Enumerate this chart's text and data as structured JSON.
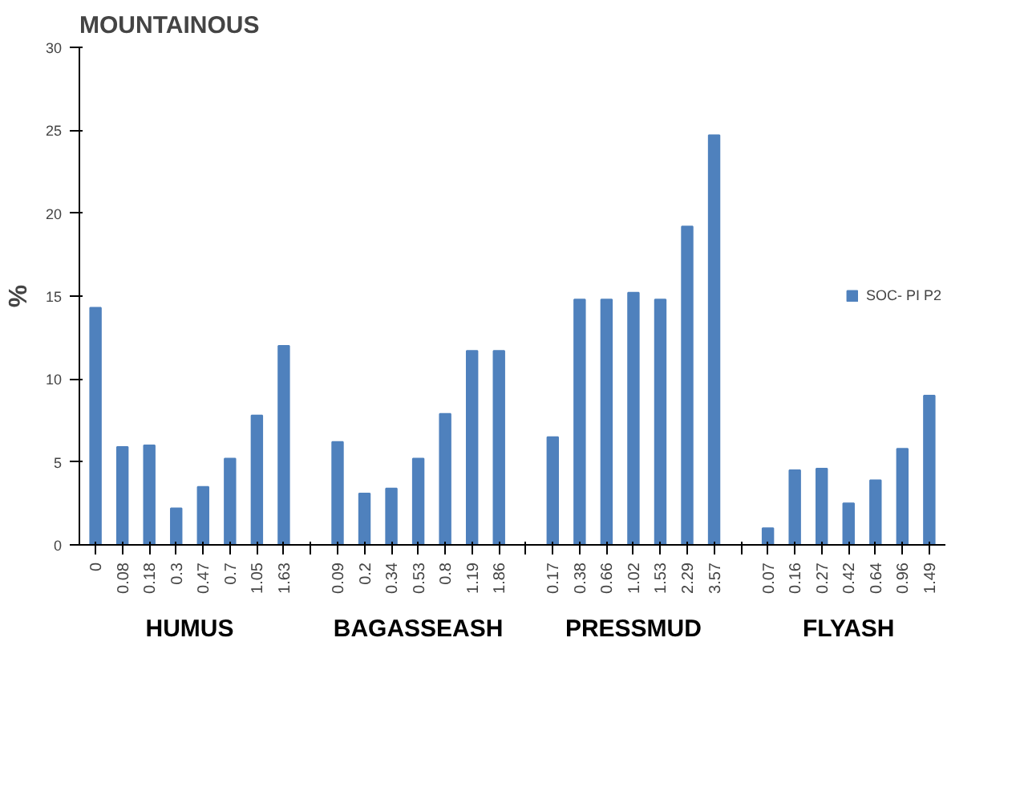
{
  "chart_data": {
    "type": "bar",
    "title": "MOUNTAINOUS",
    "ylabel": "%",
    "categories": [
      "0",
      "0.08",
      "0.18",
      "0.3",
      "0.47",
      "0.7",
      "1.05",
      "1.63",
      null,
      "0.09",
      "0.2",
      "0.34",
      "0.53",
      "0.8",
      "1.19",
      "1.86",
      null,
      "0.17",
      "0.38",
      "0.66",
      "1.02",
      "1.53",
      "2.29",
      "3.57",
      null,
      "0.07",
      "0.16",
      "0.27",
      "0.42",
      "0.64",
      "0.96",
      "1.49"
    ],
    "series": [
      {
        "name": "SOC- PI P2",
        "color": "#4f81bd",
        "values": [
          14.3,
          5.9,
          6.0,
          2.2,
          3.5,
          5.2,
          7.8,
          12.0,
          null,
          6.2,
          3.1,
          3.4,
          5.2,
          7.9,
          11.7,
          11.7,
          null,
          6.5,
          14.8,
          14.8,
          15.2,
          14.8,
          19.2,
          24.7,
          null,
          1.0,
          4.5,
          4.6,
          2.5,
          3.9,
          5.8,
          9.0
        ]
      }
    ],
    "ylim": [
      0,
      30
    ],
    "yticks": [
      0,
      5,
      10,
      15,
      20,
      25,
      30
    ],
    "grid": false,
    "legend": "right",
    "annotations": [
      "HUMUS",
      "BAGASSEASH",
      "PRESSMUD",
      "FLYASH"
    ]
  }
}
